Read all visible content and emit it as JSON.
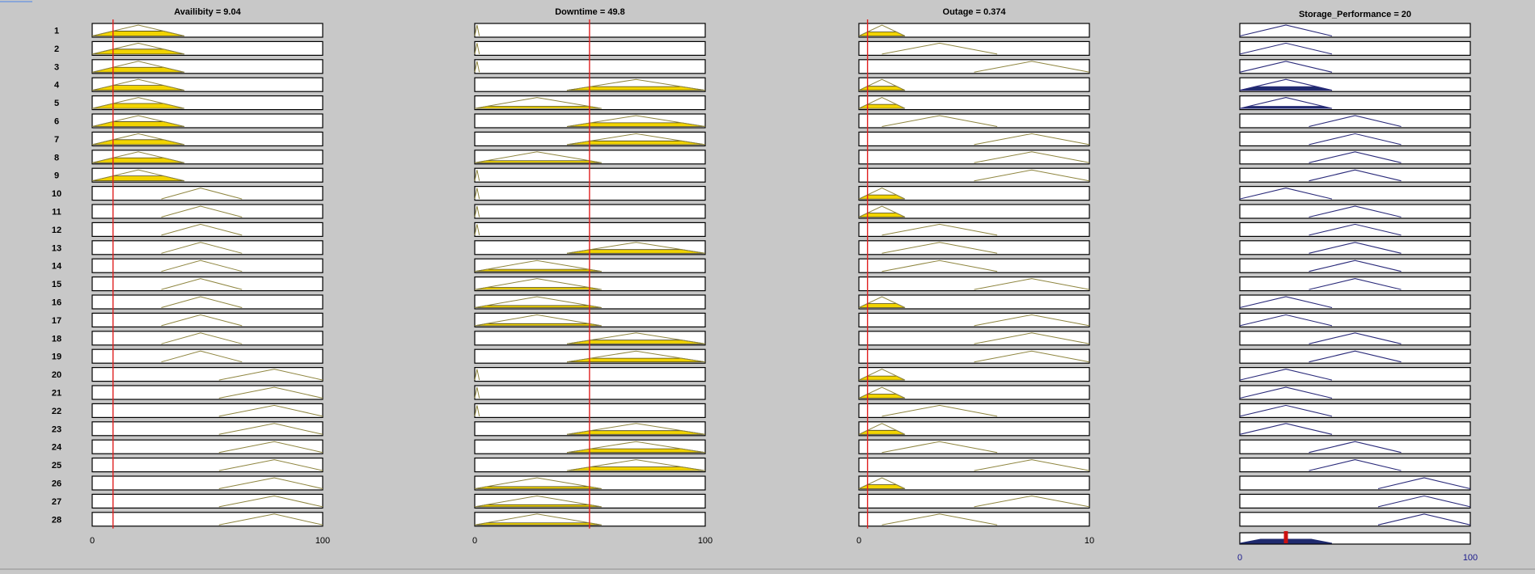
{
  "colors": {
    "background": "#c8c8c8",
    "input_fill": "#f2d400",
    "input_line": "#8f8640",
    "output_line": "#2a2a7a",
    "output_fill": "#1f2a6e",
    "marker": "#e02020",
    "output_marker": "#cc1010",
    "output_tick": "#1a1a8c"
  },
  "rows": [
    "1",
    "2",
    "3",
    "4",
    "5",
    "6",
    "7",
    "8",
    "9",
    "10",
    "11",
    "12",
    "13",
    "14",
    "15",
    "16",
    "17",
    "18",
    "19",
    "20",
    "21",
    "22",
    "23",
    "24",
    "25",
    "26",
    "27",
    "28"
  ],
  "input_mf_shapes": {
    "Availibity": {
      "L": [
        0,
        20,
        40
      ],
      "M": [
        30,
        47,
        65
      ],
      "H": [
        55,
        79,
        100
      ]
    },
    "Downtime": {
      "Z": [
        0,
        1,
        2
      ],
      "L": [
        0,
        27,
        55
      ],
      "H": [
        40,
        70,
        100
      ]
    },
    "Outage": {
      "L": [
        0,
        1,
        2
      ],
      "M": [
        1,
        3.5,
        6
      ],
      "H": [
        5,
        7.5,
        10
      ]
    },
    "Storage_Performance": {
      "L": [
        0,
        20,
        40
      ],
      "M": [
        30,
        50,
        70
      ],
      "H": [
        60,
        80,
        100
      ]
    }
  },
  "panels": [
    {
      "title": "Availibity = 9.04",
      "key": "Availibity",
      "range": [
        0,
        100
      ],
      "tick_labels": [
        "0",
        "100"
      ],
      "value": 9.04,
      "kind": "input",
      "rules": [
        "L",
        "L",
        "L",
        "L",
        "L",
        "L",
        "L",
        "L",
        "L",
        "M",
        "M",
        "M",
        "M",
        "M",
        "M",
        "M",
        "M",
        "M",
        "M",
        "H",
        "H",
        "H",
        "H",
        "H",
        "H",
        "H",
        "H",
        "H"
      ],
      "fire": [
        0.45,
        0.45,
        0.45,
        0.45,
        0.45,
        0.45,
        0.45,
        0.45,
        0.45,
        0,
        0,
        0,
        0,
        0,
        0,
        0,
        0,
        0,
        0,
        0,
        0,
        0,
        0,
        0,
        0,
        0,
        0,
        0
      ]
    },
    {
      "title": "Downtime = 49.8",
      "key": "Downtime",
      "range": [
        0,
        100
      ],
      "tick_labels": [
        "0",
        "100"
      ],
      "value": 49.8,
      "kind": "input",
      "rules": [
        "Z",
        "Z",
        "Z",
        "H",
        "L",
        "H",
        "H",
        "L",
        "Z",
        "Z",
        "Z",
        "Z",
        "H",
        "L",
        "L",
        "L",
        "L",
        "H",
        "H",
        "Z",
        "Z",
        "Z",
        "H",
        "H",
        "H",
        "L",
        "L",
        "L"
      ],
      "fire": [
        0,
        0,
        0,
        0.34,
        0.19,
        0.34,
        0.34,
        0.19,
        0,
        0,
        0,
        0,
        0.34,
        0.19,
        0.19,
        0.19,
        0.19,
        0.34,
        0.34,
        0,
        0,
        0,
        0.34,
        0.34,
        0.34,
        0.19,
        0.19,
        0.19
      ]
    },
    {
      "title": "Outage = 0.374",
      "key": "Outage",
      "range": [
        0,
        10
      ],
      "tick_labels": [
        "0",
        "10"
      ],
      "value": 0.374,
      "kind": "input",
      "rules": [
        "L",
        "M",
        "H",
        "L",
        "L",
        "M",
        "H",
        "H",
        "H",
        "L",
        "L",
        "M",
        "M",
        "M",
        "H",
        "L",
        "H",
        "H",
        "H",
        "L",
        "L",
        "M",
        "L",
        "M",
        "H",
        "L",
        "H",
        "M"
      ],
      "fire": [
        0.37,
        0,
        0,
        0.37,
        0.37,
        0,
        0,
        0,
        0,
        0.37,
        0.37,
        0,
        0,
        0,
        0,
        0.37,
        0,
        0,
        0,
        0.37,
        0.37,
        0,
        0.37,
        0,
        0,
        0.37,
        0,
        0
      ]
    },
    {
      "title": "Storage_Performance = 20",
      "key": "Storage_Performance",
      "range": [
        0,
        100
      ],
      "tick_labels": [
        "0",
        "100"
      ],
      "value": 20,
      "kind": "output",
      "rules": [
        "L",
        "L",
        "L",
        "L",
        "L",
        "M",
        "M",
        "M",
        "M",
        "L",
        "M",
        "M",
        "M",
        "M",
        "M",
        "L",
        "L",
        "M",
        "M",
        "L",
        "L",
        "L",
        "L",
        "M",
        "M",
        "H",
        "H",
        "H"
      ],
      "fire": [
        0,
        0,
        0,
        0.34,
        0.19,
        0,
        0,
        0,
        0,
        0,
        0,
        0,
        0,
        0,
        0,
        0,
        0,
        0,
        0,
        0,
        0,
        0,
        0,
        0,
        0,
        0,
        0,
        0
      ],
      "aggregate_fire": 0.45
    }
  ]
}
